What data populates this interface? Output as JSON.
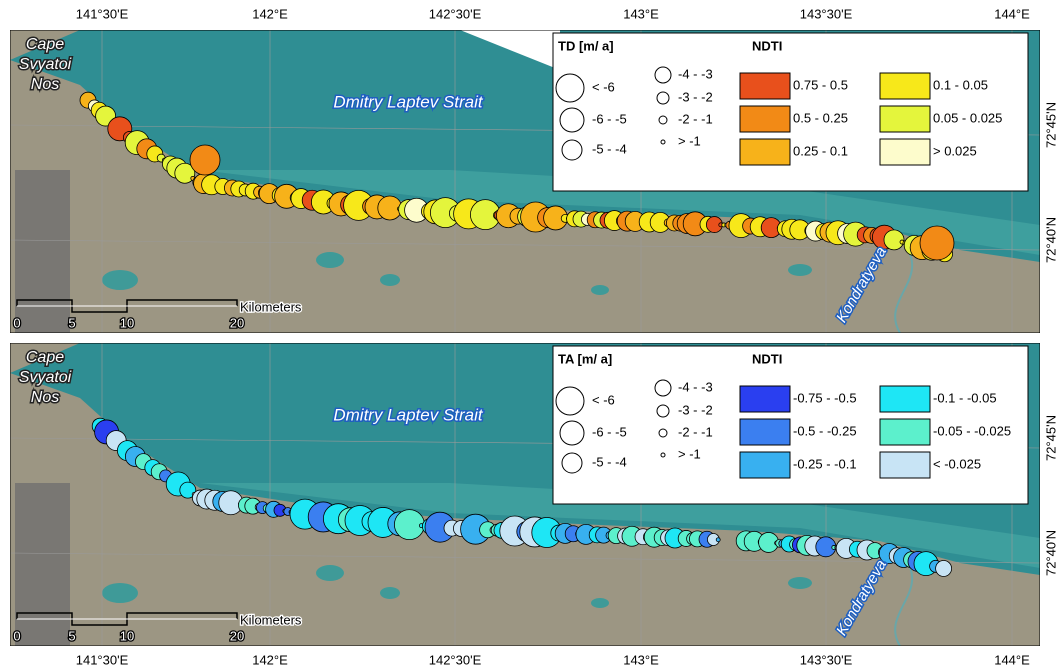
{
  "axes": {
    "lon_ticks": [
      "141°30'E",
      "142°E",
      "142°30'E",
      "143°E",
      "143°30'E",
      "144°E"
    ]
  },
  "panels": [
    {
      "place_label": [
        "Cape",
        "Svyatoi",
        "Nos"
      ],
      "strait_label": "Dmitry Laptev Strait",
      "river_label": "Kondratyeva",
      "lat_ticks": [
        "72°45'N",
        "72°40'N"
      ],
      "scale_bar": {
        "ticks": [
          "0",
          "5",
          "10",
          "20"
        ],
        "unit": "Kilometers"
      },
      "size_legend": {
        "title": "TD [m/ a]",
        "items": [
          "< -6",
          "-6 - -5",
          "-5 - -4",
          "-4 - -3",
          "-3 - -2",
          "-2 - -1",
          "> -1"
        ]
      },
      "color_legend": {
        "title": "NDTI",
        "items": [
          {
            "label": "0.75 - 0.5",
            "color": "#e8501c"
          },
          {
            "label": "0.5 - 0.25",
            "color": "#f28a16"
          },
          {
            "label": "0.25 - 0.1",
            "color": "#f7b21a"
          },
          {
            "label": "0.1 - 0.05",
            "color": "#f7e81a"
          },
          {
            "label": "0.05 - 0.025",
            "color": "#e4f53c"
          },
          {
            "label": "> 0.025",
            "color": "#fdfccc"
          }
        ]
      }
    },
    {
      "place_label": [
        "Cape",
        "Svyatoi",
        "Nos"
      ],
      "strait_label": "Dmitry Laptev Strait",
      "river_label": "Kondratyeva",
      "lat_ticks": [
        "72°45'N",
        "72°40'N"
      ],
      "scale_bar": {
        "ticks": [
          "0",
          "5",
          "10",
          "20"
        ],
        "unit": "Kilometers"
      },
      "size_legend": {
        "title": "TA [m/ a]",
        "items": [
          "< -6",
          "-6 - -5",
          "-5 - -4",
          "-4 - -3",
          "-3 - -2",
          "-2 - -1",
          "> -1"
        ]
      },
      "color_legend": {
        "title": "NDTI",
        "items": [
          {
            "label": "-0.75 - -0.5",
            "color": "#2a3ff0"
          },
          {
            "label": "-0.5 - -0.25",
            "color": "#3b7ff0"
          },
          {
            "label": "-0.25 - -0.1",
            "color": "#38b0f0"
          },
          {
            "label": "-0.1 - -0.05",
            "color": "#1ee6f5"
          },
          {
            "label": "-0.05 - -0.025",
            "color": "#5cf0cc"
          },
          {
            "label": "< -0.025",
            "color": "#c8e4f5"
          }
        ]
      }
    }
  ]
}
